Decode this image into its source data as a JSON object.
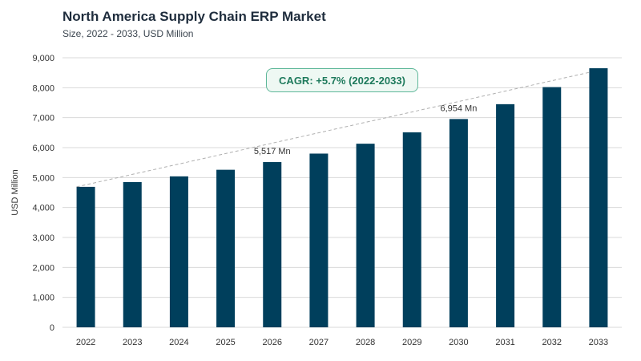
{
  "header": {
    "title": "North America Supply Chain ERP Market",
    "subtitle": "Size, 2022 - 2033, USD Million"
  },
  "annotation": {
    "cagr": "CAGR: +5.7% (2022-2033)"
  },
  "colors": {
    "bar": "#003f5c",
    "grid": "#d9d9d9",
    "trend": "#b0b0b0",
    "cagr_border": "#5fb89a",
    "cagr_text": "#1e7a5c"
  },
  "chart_data": {
    "type": "bar",
    "title": "North America Supply Chain ERP Market",
    "subtitle": "Size, 2022 - 2033, USD Million",
    "xlabel": "",
    "ylabel": "USD Million",
    "ylim": [
      0,
      9000
    ],
    "yticks": [
      0,
      1000,
      2000,
      3000,
      4000,
      5000,
      6000,
      7000,
      8000,
      9000
    ],
    "ytick_labels": [
      "0",
      "1,000",
      "2,000",
      "3,000",
      "4,000",
      "5,000",
      "6,000",
      "7,000",
      "8,000",
      "9,000"
    ],
    "grid": true,
    "categories": [
      "2022",
      "2023",
      "2024",
      "2025",
      "2026",
      "2027",
      "2028",
      "2029",
      "2030",
      "2031",
      "2032",
      "2033"
    ],
    "values": [
      4690,
      4850,
      5040,
      5260,
      5517,
      5800,
      6130,
      6510,
      6954,
      7450,
      8020,
      8650
    ],
    "data_labels": [
      {
        "category": "2026",
        "text": "5,517 Mn"
      },
      {
        "category": "2030",
        "text": "6,954 Mn"
      }
    ],
    "trendline": {
      "from": "2022",
      "to": "2033",
      "style": "dashed"
    }
  }
}
